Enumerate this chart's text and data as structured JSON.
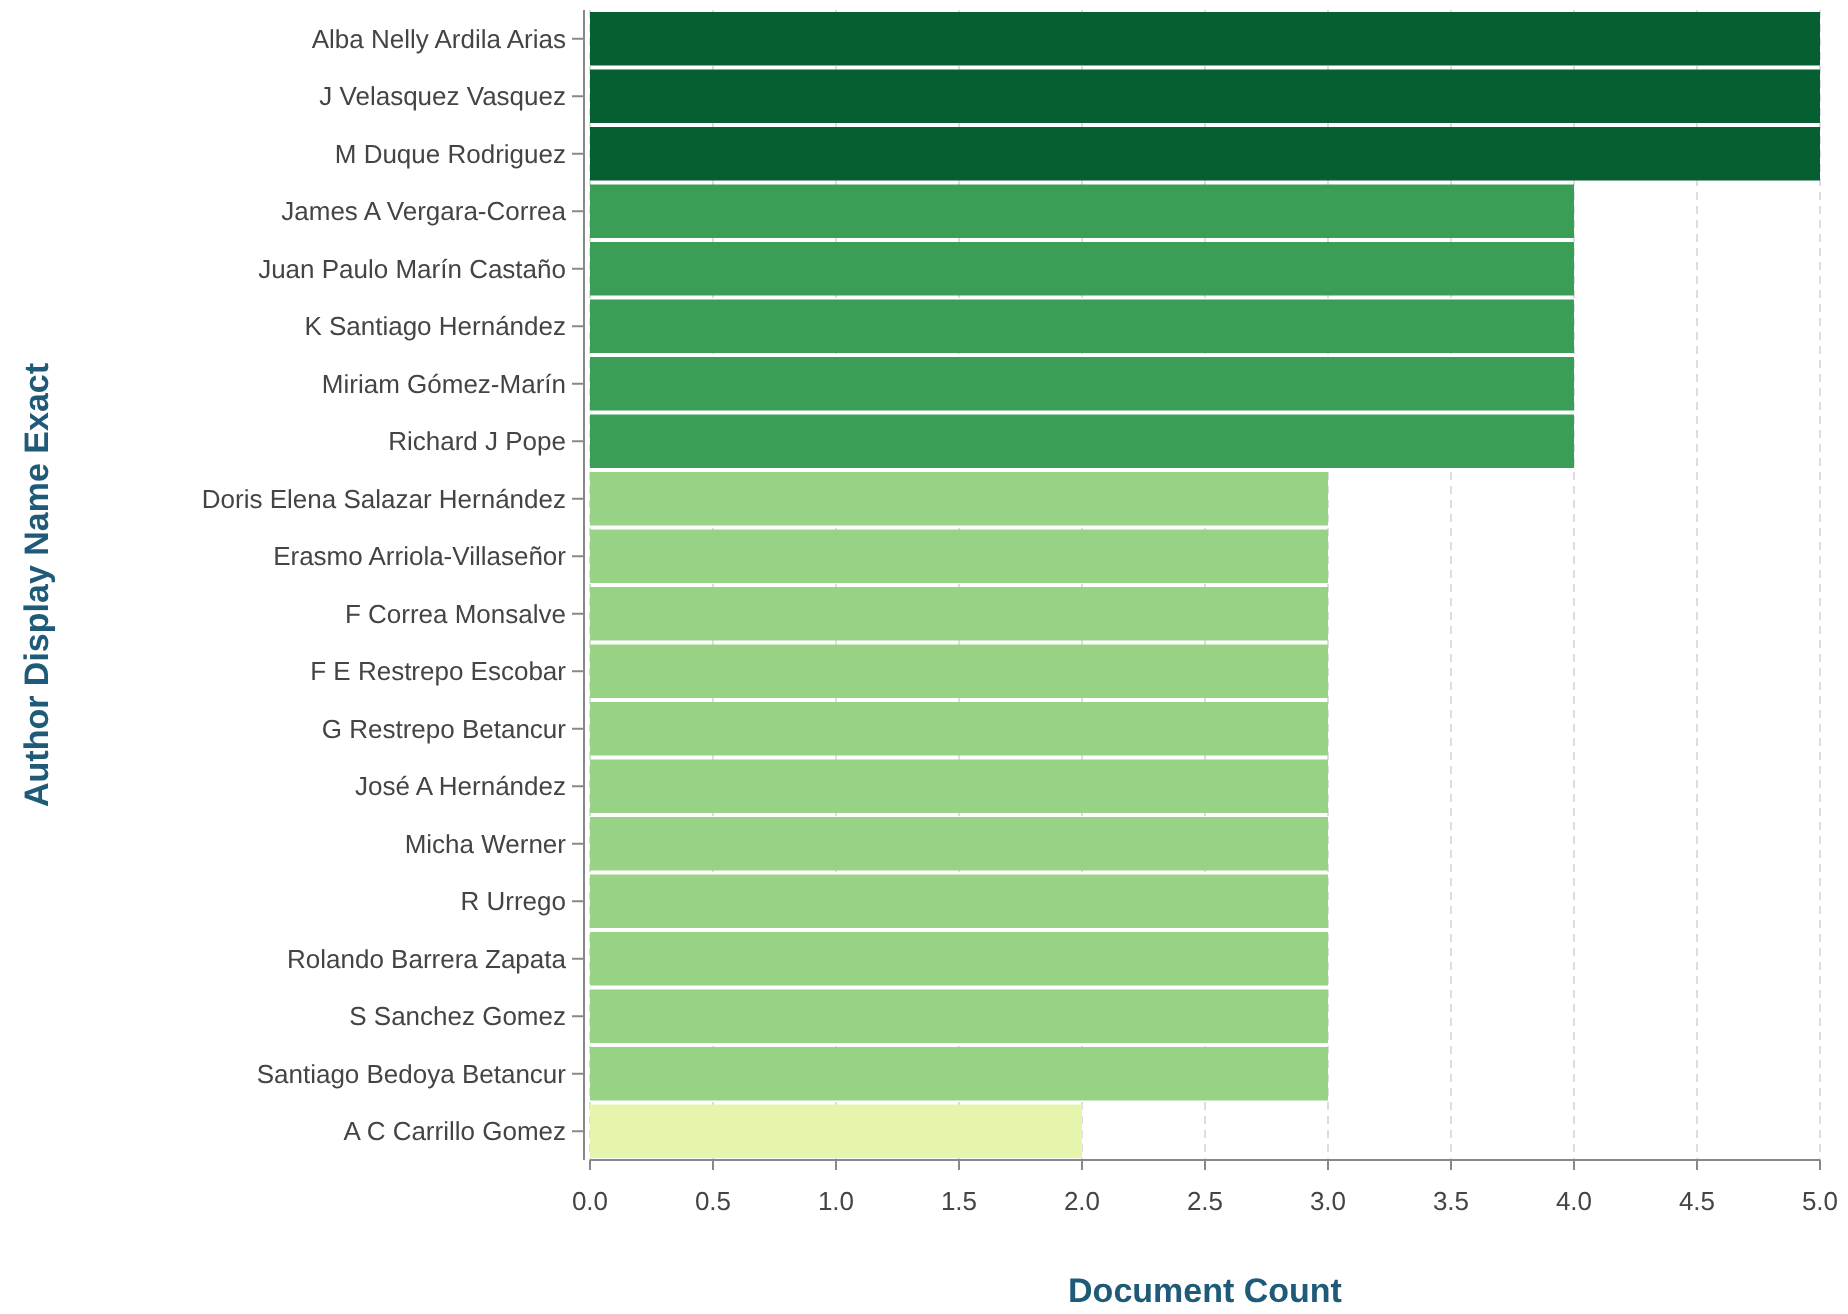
{
  "chart_data": {
    "type": "bar",
    "orientation": "horizontal",
    "xlabel": "Document Count",
    "ylabel": "Author Display Name Exact",
    "categories": [
      "Alba Nelly Ardila Arias",
      "J Velasquez Vasquez",
      "M Duque Rodriguez",
      "James A Vergara-Correa",
      "Juan Paulo Marín Castaño",
      "K Santiago Hernández",
      "Miriam Gómez-Marín",
      "Richard J Pope",
      "Doris Elena Salazar Hernández",
      "Erasmo Arriola-Villaseñor",
      "F Correa Monsalve",
      "F E Restrepo Escobar",
      "G Restrepo Betancur",
      "José A Hernández",
      "Micha Werner",
      "R Urrego",
      "Rolando Barrera Zapata",
      "S Sanchez Gomez",
      "Santiago Bedoya Betancur",
      "A C Carrillo Gomez"
    ],
    "values": [
      5,
      5,
      5,
      4,
      4,
      4,
      4,
      4,
      3,
      3,
      3,
      3,
      3,
      3,
      3,
      3,
      3,
      3,
      3,
      2
    ],
    "colors": [
      "#065f30",
      "#065f30",
      "#065f30",
      "#3a9e56",
      "#3a9e56",
      "#3a9e56",
      "#3a9e56",
      "#3a9e56",
      "#98d385",
      "#98d385",
      "#98d385",
      "#98d385",
      "#98d385",
      "#98d385",
      "#98d385",
      "#98d385",
      "#98d385",
      "#98d385",
      "#98d385",
      "#e5f5ab"
    ],
    "xlim": [
      0,
      5
    ],
    "xticks": [
      {
        "value": 0,
        "label": "0.0"
      },
      {
        "value": 0.5,
        "label": "0.5"
      },
      {
        "value": 1,
        "label": "1.0"
      },
      {
        "value": 1.5,
        "label": "1.5"
      },
      {
        "value": 2,
        "label": "2.0"
      },
      {
        "value": 2.5,
        "label": "2.5"
      },
      {
        "value": 3,
        "label": "3.0"
      },
      {
        "value": 3.5,
        "label": "3.5"
      },
      {
        "value": 4,
        "label": "4.0"
      },
      {
        "value": 4.5,
        "label": "4.5"
      },
      {
        "value": 5,
        "label": "5.0"
      }
    ],
    "grid": "x"
  }
}
